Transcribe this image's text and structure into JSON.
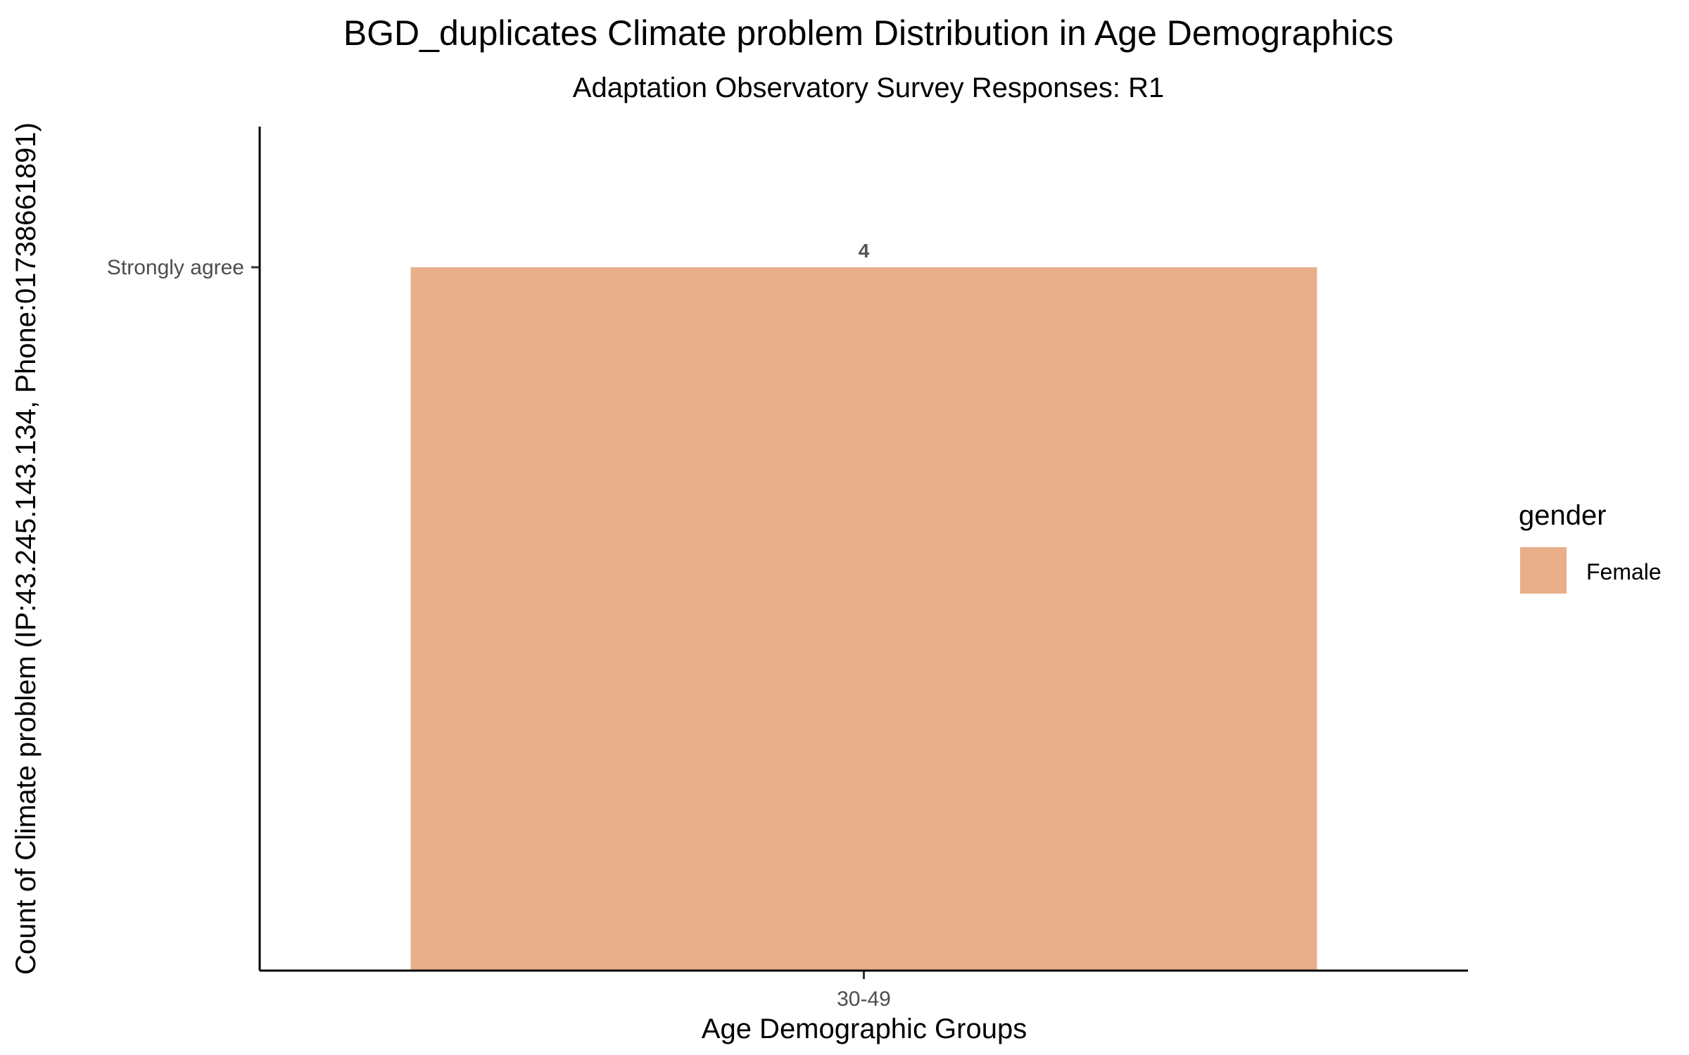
{
  "chart_data": {
    "type": "bar",
    "title": "BGD_duplicates Climate problem Distribution in Age Demographics",
    "subtitle": "Adaptation Observatory Survey Responses: R1",
    "xlabel": "Age Demographic Groups",
    "ylabel": "Count of Climate problem (IP:43.245.143.134, Phone:01738661891)",
    "categories": [
      "30-49"
    ],
    "y_tick_labels": [
      "Strongly agree"
    ],
    "ylim": [
      0,
      4.8
    ],
    "y_tick_values": [
      4
    ],
    "series": [
      {
        "name": "Female",
        "values": [
          4
        ],
        "value_labels": [
          "4"
        ],
        "color": "#E8AF8A"
      }
    ],
    "legend": {
      "title": "gender",
      "position": "right"
    },
    "grid": false
  }
}
